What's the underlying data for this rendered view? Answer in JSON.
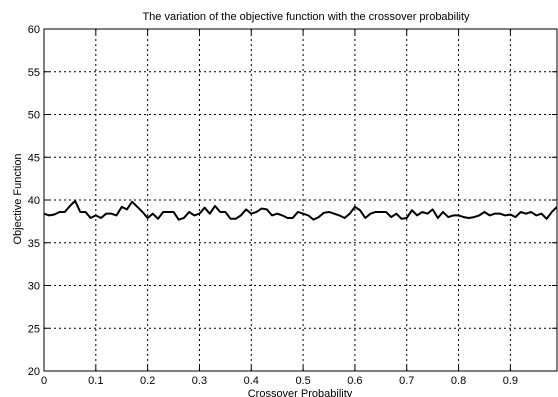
{
  "chart_data": {
    "type": "line",
    "title": "The variation of the objective function with the crossover probability",
    "xlabel": "Crossover Probability",
    "ylabel": "Objective Function",
    "xlim": [
      0,
      0.99
    ],
    "ylim": [
      20,
      60
    ],
    "xticks": [
      0,
      0.1,
      0.2,
      0.3,
      0.4,
      0.5,
      0.6,
      0.7,
      0.8,
      0.9
    ],
    "xtick_labels": [
      "0",
      "0.1",
      "0.2",
      "0.3",
      "0.4",
      "0.5",
      "0.6",
      "0.7",
      "0.8",
      "0.9"
    ],
    "yticks": [
      20,
      25,
      30,
      35,
      40,
      45,
      50,
      55,
      60
    ],
    "ytick_labels": [
      "20",
      "25",
      "30",
      "35",
      "40",
      "45",
      "50",
      "55",
      "60"
    ],
    "grid": true,
    "grid_style": "dotted",
    "line_color": "#000000",
    "series": [
      {
        "x": [
          0,
          0.01,
          0.02,
          0.03,
          0.04,
          0.05,
          0.06,
          0.07,
          0.08,
          0.09,
          0.1,
          0.11,
          0.12,
          0.13,
          0.14,
          0.15,
          0.16,
          0.17,
          0.18,
          0.19,
          0.2,
          0.21,
          0.22,
          0.23,
          0.24,
          0.25,
          0.26,
          0.27,
          0.28,
          0.29,
          0.3,
          0.31,
          0.32,
          0.33,
          0.34,
          0.35,
          0.36,
          0.37,
          0.38,
          0.39,
          0.4,
          0.41,
          0.42,
          0.43,
          0.44,
          0.45,
          0.46,
          0.47,
          0.48,
          0.49,
          0.5,
          0.51,
          0.52,
          0.53,
          0.54,
          0.55,
          0.56,
          0.57,
          0.58,
          0.59,
          0.6,
          0.61,
          0.62,
          0.63,
          0.64,
          0.65,
          0.66,
          0.67,
          0.68,
          0.69,
          0.7,
          0.71,
          0.72,
          0.73,
          0.74,
          0.75,
          0.76,
          0.77,
          0.78,
          0.79,
          0.8,
          0.81,
          0.82,
          0.83,
          0.84,
          0.85,
          0.86,
          0.87,
          0.88,
          0.89,
          0.9,
          0.91,
          0.92,
          0.93,
          0.94,
          0.95,
          0.96,
          0.97,
          0.98,
          0.99
        ],
        "values": [
          38.4,
          38.2,
          38.3,
          38.6,
          38.6,
          39.3,
          39.9,
          38.6,
          38.6,
          37.9,
          38.2,
          37.9,
          38.4,
          38.4,
          38.2,
          39.2,
          38.9,
          39.8,
          39.2,
          38.6,
          37.9,
          38.4,
          37.8,
          38.6,
          38.6,
          38.6,
          37.7,
          37.9,
          38.6,
          38.2,
          38.4,
          39.1,
          38.4,
          39.3,
          38.6,
          38.6,
          37.8,
          37.8,
          38.2,
          38.9,
          38.4,
          38.6,
          39.0,
          38.9,
          38.2,
          38.4,
          38.2,
          37.9,
          37.9,
          38.6,
          38.4,
          38.2,
          37.7,
          38.0,
          38.5,
          38.6,
          38.4,
          38.2,
          37.9,
          38.4,
          39.2,
          38.8,
          37.9,
          38.4,
          38.6,
          38.6,
          38.6,
          38.0,
          38.4,
          37.8,
          37.9,
          38.8,
          38.2,
          38.6,
          38.4,
          38.9,
          37.9,
          38.6,
          38.0,
          38.2,
          38.2,
          38.0,
          37.9,
          38.0,
          38.2,
          38.6,
          38.2,
          38.4,
          38.4,
          38.2,
          38.3,
          38.0,
          38.6,
          38.4,
          38.6,
          38.2,
          38.4,
          37.8,
          38.6,
          39.2
        ]
      }
    ]
  }
}
